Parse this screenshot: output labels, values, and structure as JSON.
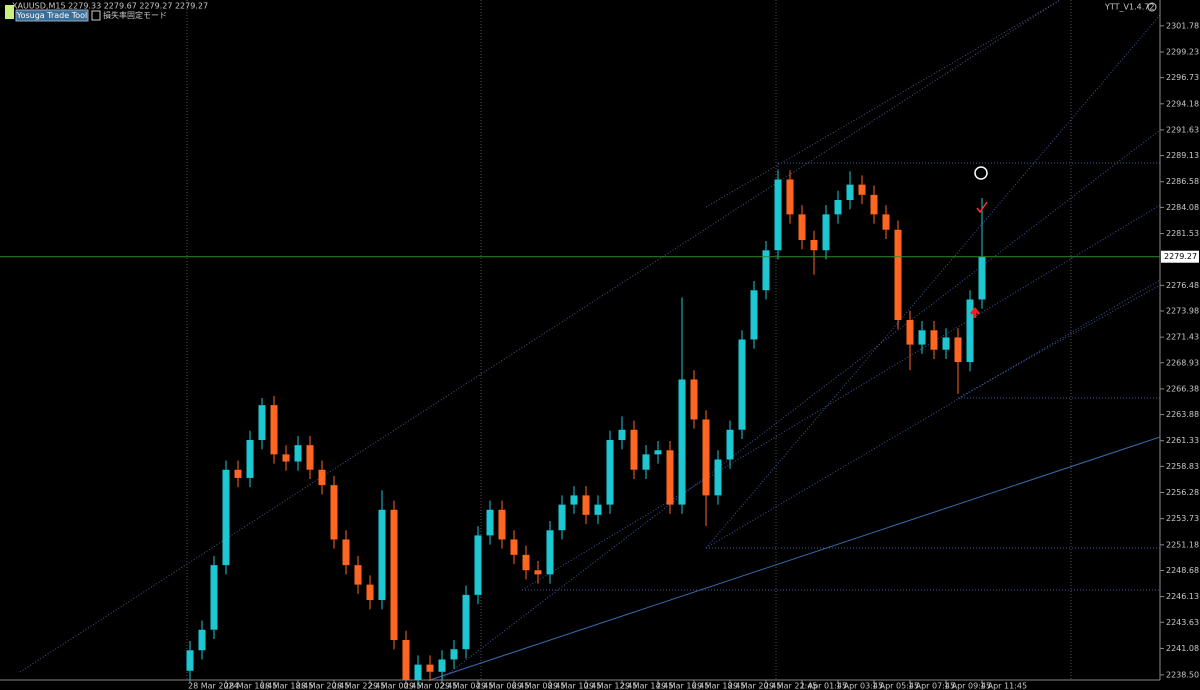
{
  "header": {
    "symbol_info": "XAUUSD,M15  2279.33 2279.67 2279.27 2279.27",
    "tool_button": "Yosuga Trade Tool",
    "mode_label": "損失率固定モード",
    "version": "YTT_V1.4.72"
  },
  "chart_data": {
    "type": "candlestick",
    "categories": [
      "28 Mar 2024",
      null,
      null,
      "28 Mar 16:45",
      null,
      null,
      "28 Mar 18:45",
      null,
      null,
      "28 Mar 20:45",
      null,
      null,
      "28 Mar 22:45",
      null,
      null,
      "29 Mar 00:45",
      null,
      null,
      "29 Mar 02:45",
      null,
      null,
      "29 Mar 04:45",
      null,
      null,
      "29 Mar 06:45",
      null,
      null,
      "29 Mar 08:45",
      null,
      null,
      "29 Mar 10:45",
      null,
      null,
      "29 Mar 12:45",
      null,
      null,
      "29 Mar 14:45",
      null,
      null,
      "29 Mar 16:45",
      null,
      null,
      "29 Mar 18:45",
      null,
      null,
      "29 Mar 20:45",
      null,
      null,
      "29 Mar 22:45",
      null,
      null,
      "1 Apr 01:45",
      null,
      null,
      "1 Apr 03:45",
      null,
      null,
      "1 Apr 05:45",
      null,
      null,
      "1 Apr 07:45",
      null,
      null,
      "1 Apr 09:45",
      null,
      null,
      "1 Apr 11:45"
    ],
    "open": [
      2238.9,
      2240.9,
      2242.9,
      2249.2,
      2258.5,
      2257.7,
      2261.4,
      2264.8,
      2260.0,
      2259.3,
      2260.9,
      2258.5,
      2257.0,
      2251.7,
      2249.2,
      2247.3,
      2245.8,
      2254.6,
      2241.9,
      2238.0,
      2239.5,
      2238.8,
      2240.0,
      2241.0,
      2246.3,
      2252.1,
      2254.6,
      2251.7,
      2250.2,
      2248.7,
      2248.3,
      2252.6,
      2255.1,
      2256.0,
      2254.1,
      2255.1,
      2261.4,
      2262.4,
      2258.5,
      2260.0,
      2260.4,
      2255.1,
      2267.3,
      2263.4,
      2256.0,
      2259.5,
      2262.4,
      2271.2,
      2276.0,
      2279.9,
      2286.8,
      2283.4,
      2280.9,
      2279.9,
      2283.4,
      2284.8,
      2286.3,
      2285.3,
      2283.4,
      2281.9,
      2273.1,
      2270.7,
      2272.1,
      2270.2,
      2271.4,
      2269.0,
      2275.1
    ],
    "high": [
      2241.8,
      2243.8,
      2250.1,
      2259.4,
      2259.4,
      2262.3,
      2265.5,
      2265.7,
      2260.9,
      2261.8,
      2261.8,
      2259.4,
      2257.9,
      2252.6,
      2250.1,
      2248.2,
      2256.5,
      2255.5,
      2242.8,
      2240.4,
      2240.4,
      2240.9,
      2241.9,
      2247.2,
      2253.0,
      2255.5,
      2255.5,
      2252.6,
      2251.1,
      2249.6,
      2253.5,
      2256.0,
      2256.9,
      2256.9,
      2256.0,
      2262.3,
      2263.7,
      2263.3,
      2260.9,
      2261.3,
      2261.3,
      2275.3,
      2268.2,
      2264.3,
      2260.4,
      2263.3,
      2272.1,
      2276.9,
      2280.8,
      2287.7,
      2287.7,
      2284.3,
      2281.8,
      2284.3,
      2285.7,
      2287.6,
      2287.2,
      2286.2,
      2284.3,
      2282.8,
      2274.0,
      2273.0,
      2273.0,
      2272.3,
      2272.3,
      2276.0,
      2285.0
    ],
    "low": [
      2238.0,
      2240.0,
      2242.0,
      2248.3,
      2256.8,
      2256.8,
      2260.5,
      2259.1,
      2258.4,
      2258.4,
      2257.6,
      2256.1,
      2250.8,
      2248.3,
      2246.4,
      2244.9,
      2244.9,
      2241.0,
      2237.5,
      2237.5,
      2237.9,
      2237.9,
      2239.1,
      2240.1,
      2245.4,
      2251.2,
      2250.8,
      2249.3,
      2247.8,
      2247.4,
      2247.4,
      2251.7,
      2254.2,
      2253.2,
      2253.2,
      2254.2,
      2260.5,
      2257.6,
      2257.6,
      2259.1,
      2254.2,
      2254.2,
      2262.5,
      2253.0,
      2255.1,
      2258.6,
      2261.5,
      2270.3,
      2275.1,
      2279.0,
      2282.5,
      2280.0,
      2277.5,
      2279.0,
      2282.5,
      2283.9,
      2284.4,
      2282.5,
      2281.0,
      2272.2,
      2268.2,
      2269.8,
      2269.3,
      2269.3,
      2265.9,
      2268.1,
      2274.2
    ],
    "close": [
      2240.9,
      2242.9,
      2249.2,
      2258.5,
      2257.7,
      2261.4,
      2264.8,
      2260.0,
      2259.3,
      2260.9,
      2258.5,
      2257.0,
      2251.7,
      2249.2,
      2247.3,
      2245.8,
      2254.6,
      2241.9,
      2238.0,
      2239.5,
      2238.8,
      2240.0,
      2241.0,
      2246.3,
      2252.1,
      2254.6,
      2251.7,
      2250.2,
      2248.7,
      2248.3,
      2252.6,
      2255.1,
      2256.0,
      2254.1,
      2255.1,
      2261.4,
      2262.4,
      2258.5,
      2260.0,
      2260.4,
      2255.1,
      2267.3,
      2263.4,
      2256.0,
      2259.5,
      2262.4,
      2271.2,
      2276.0,
      2279.9,
      2286.8,
      2283.4,
      2280.9,
      2279.9,
      2283.4,
      2284.8,
      2286.3,
      2285.3,
      2283.4,
      2281.9,
      2273.1,
      2270.7,
      2272.1,
      2270.2,
      2271.4,
      2269.0,
      2275.1,
      2279.27
    ],
    "up_color": "#1ec8d2",
    "down_color": "#ff6622",
    "current_price": 2279.27,
    "current_price_color": "#2e8b2e",
    "ylim": [
      2238.0,
      2304.3
    ],
    "yticks": [
      2301.78,
      2299.23,
      2296.73,
      2294.18,
      2291.63,
      2289.13,
      2286.58,
      2284.08,
      2281.53,
      2276.48,
      2273.98,
      2271.43,
      2268.93,
      2266.38,
      2263.88,
      2261.33,
      2258.83,
      2256.28,
      2253.73,
      2251.18,
      2248.68,
      2246.13,
      2243.63,
      2241.08,
      {
        "value": 2238.5,
        "label": "2238.50"
      }
    ]
  }
}
